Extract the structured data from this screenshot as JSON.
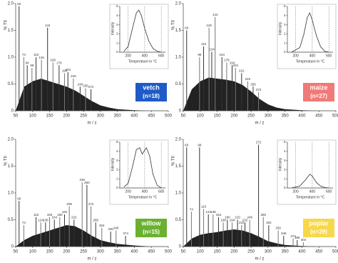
{
  "chart_data": [
    {
      "type": "bar",
      "title": "vetch",
      "subtitle": "(n=18)",
      "badge_color": "#1f5bc6",
      "ylabel": "% TII",
      "xlabel": "m / z",
      "xlim": [
        50,
        500
      ],
      "xticks": [
        50,
        100,
        150,
        200,
        250,
        300,
        350,
        400,
        450,
        500
      ],
      "ylim": [
        0,
        2.0
      ],
      "yticks": [
        0,
        0.5,
        {
          "value": 1.0,
          "label": "1.0"
        },
        1.5,
        {
          "value": 2.0,
          "label": "2.0"
        }
      ],
      "peaks": {
        "x": [
          60,
          74,
          84,
          98,
          110,
          126,
          144,
          160,
          178,
          194,
          204,
          220,
          240,
          256,
          272
        ],
        "values": [
          1.95,
          1.0,
          0.85,
          0.8,
          1.0,
          0.95,
          1.55,
          0.9,
          0.85,
          0.7,
          0.72,
          0.6,
          0.45,
          0.42,
          0.4
        ]
      },
      "background": {
        "x": [
          50,
          75,
          100,
          125,
          150,
          175,
          200,
          225,
          250,
          275,
          300,
          325,
          350,
          400,
          450,
          500
        ],
        "values": [
          0,
          0.45,
          0.55,
          0.6,
          0.55,
          0.5,
          0.45,
          0.38,
          0.28,
          0.18,
          0.1,
          0.06,
          0.03,
          0.01,
          0,
          0
        ]
      },
      "inset": {
        "type": "line",
        "xlabel": "Temperature in °C",
        "ylabel": "Intensity",
        "xlim": [
          100,
          650
        ],
        "xticks": [
          200,
          400,
          600
        ],
        "ylim": [
          0,
          5
        ],
        "yticks": [
          0,
          1,
          2,
          3,
          4,
          5
        ],
        "grid": true,
        "x": [
          150,
          200,
          250,
          300,
          330,
          360,
          400,
          450,
          500,
          550,
          600
        ],
        "values": [
          0.1,
          0.6,
          2.5,
          4.3,
          4.6,
          4.0,
          2.6,
          1.2,
          0.4,
          0.1,
          0
        ]
      }
    },
    {
      "type": "bar",
      "title": "maize",
      "subtitle": "(n=27)",
      "badge_color": "#f07a78",
      "ylabel": "% TII",
      "xlabel": "m / z",
      "xlim": [
        50,
        500
      ],
      "xticks": [
        50,
        100,
        150,
        200,
        250,
        300,
        350,
        400,
        450,
        500
      ],
      "ylim": [
        0,
        2.0
      ],
      "yticks": [
        0,
        0.5,
        {
          "value": 1.0,
          "label": "1.0"
        },
        1.5,
        {
          "value": 2.0,
          "label": "2.0"
        }
      ],
      "peaks": {
        "x": [
          60,
          98,
          110,
          126,
          134,
          144,
          164,
          178,
          194,
          204,
          222,
          240,
          256,
          272
        ],
        "values": [
          1.5,
          1.0,
          1.2,
          1.55,
          1.1,
          1.75,
          1.0,
          0.9,
          0.85,
          0.8,
          0.7,
          0.55,
          0.45,
          0.35
        ]
      },
      "background": {
        "x": [
          50,
          75,
          100,
          125,
          150,
          175,
          200,
          225,
          250,
          275,
          300,
          325,
          350,
          400,
          450,
          500
        ],
        "values": [
          0,
          0.4,
          0.55,
          0.62,
          0.6,
          0.58,
          0.55,
          0.48,
          0.36,
          0.22,
          0.12,
          0.06,
          0.03,
          0.01,
          0,
          0
        ]
      },
      "inset": {
        "type": "line",
        "xlabel": "Temperature in °C",
        "ylabel": "Intensity",
        "xlim": [
          100,
          650
        ],
        "xticks": [
          200,
          400,
          600
        ],
        "ylim": [
          0,
          5
        ],
        "yticks": [
          0,
          1,
          2,
          3,
          4,
          5
        ],
        "grid": true,
        "x": [
          150,
          250,
          300,
          340,
          370,
          400,
          450,
          500,
          550,
          600
        ],
        "values": [
          0,
          0.5,
          2.0,
          3.8,
          4.3,
          3.5,
          1.8,
          0.6,
          0.1,
          0
        ]
      }
    },
    {
      "type": "bar",
      "title": "willow",
      "subtitle": "(n=15)",
      "badge_color": "#6ab12f",
      "ylabel": "% TII",
      "xlabel": "m / z",
      "xlim": [
        50,
        500
      ],
      "xticks": [
        50,
        100,
        150,
        200,
        250,
        300,
        350,
        400,
        450,
        500
      ],
      "ylim": [
        0,
        2.0
      ],
      "yticks": [
        0,
        0.5,
        {
          "value": 1.0,
          "label": "1.0"
        },
        1.5,
        {
          "value": 2.0,
          "label": "2.0"
        }
      ],
      "peaks": {
        "x": [
          60,
          74,
          110,
          124,
          138,
          150,
          164,
          180,
          194,
          208,
          222,
          246,
          260,
          272,
          286,
          304,
          330,
          346,
          374
        ],
        "values": [
          0.85,
          0.4,
          0.55,
          0.45,
          0.45,
          0.55,
          0.5,
          0.55,
          0.6,
          0.75,
          0.5,
          1.2,
          1.15,
          0.75,
          0.45,
          0.35,
          0.28,
          0.3,
          0.2
        ]
      },
      "background": {
        "x": [
          50,
          75,
          100,
          125,
          150,
          175,
          200,
          225,
          250,
          275,
          300,
          325,
          350,
          400,
          450,
          500
        ],
        "values": [
          0,
          0.12,
          0.2,
          0.25,
          0.3,
          0.35,
          0.4,
          0.38,
          0.3,
          0.2,
          0.12,
          0.08,
          0.05,
          0.02,
          0,
          0
        ]
      },
      "inset": {
        "type": "line",
        "xlabel": "Temperature in °C",
        "ylabel": "Intensity",
        "xlim": [
          100,
          650
        ],
        "xticks": [
          200,
          400,
          600
        ],
        "ylim": [
          0,
          5
        ],
        "yticks": [
          0,
          1,
          2,
          3,
          4,
          5
        ],
        "grid": true,
        "x": [
          150,
          200,
          250,
          300,
          340,
          370,
          420,
          460,
          500,
          550,
          600
        ],
        "values": [
          0.1,
          0.5,
          2.2,
          4.2,
          4.4,
          3.7,
          4.4,
          3.5,
          1.5,
          0.3,
          0
        ]
      }
    },
    {
      "type": "bar",
      "title": "poplar",
      "subtitle": "(n=29)",
      "badge_color": "#f6d84b",
      "ylabel": "% TII",
      "xlabel": "m / z",
      "xlim": [
        50,
        500
      ],
      "xticks": [
        50,
        100,
        150,
        200,
        250,
        300,
        350,
        400,
        450,
        500
      ],
      "ylim": [
        0,
        2.0
      ],
      "yticks": [
        0,
        0.5,
        {
          "value": 1.0,
          "label": "1.0"
        },
        1.5,
        {
          "value": 2.0,
          "label": "2.0"
        }
      ],
      "peaks": {
        "x": [
          60,
          74,
          98,
          110,
          124,
          138,
          154,
          168,
          180,
          194,
          210,
          222,
          232,
          246,
          272,
          286,
          302,
          330,
          346,
          374,
          386,
          404
        ],
        "values": [
          1.85,
          0.65,
          1.85,
          0.7,
          0.6,
          0.6,
          0.55,
          0.45,
          0.5,
          0.45,
          0.5,
          0.4,
          0.45,
          0.5,
          1.9,
          0.55,
          0.4,
          0.3,
          0.2,
          0.15,
          0.12,
          0.08
        ]
      },
      "background": {
        "x": [
          50,
          75,
          100,
          125,
          150,
          175,
          200,
          225,
          250,
          275,
          300,
          325,
          350,
          400,
          450,
          500
        ],
        "values": [
          0,
          0.15,
          0.22,
          0.25,
          0.27,
          0.3,
          0.32,
          0.3,
          0.25,
          0.18,
          0.1,
          0.06,
          0.03,
          0.01,
          0,
          0
        ]
      },
      "inset": {
        "type": "line",
        "xlabel": "Temperature in °C",
        "ylabel": "Intensity",
        "xlim": [
          100,
          650
        ],
        "xticks": [
          200,
          400,
          600
        ],
        "ylim": [
          0,
          5
        ],
        "yticks": [
          0,
          1,
          2,
          3,
          4,
          5
        ],
        "grid": true,
        "x": [
          150,
          250,
          320,
          370,
          400,
          450,
          500,
          550,
          600
        ],
        "values": [
          0,
          0.2,
          0.9,
          1.5,
          1.3,
          0.6,
          0.2,
          0.05,
          0
        ]
      }
    }
  ]
}
